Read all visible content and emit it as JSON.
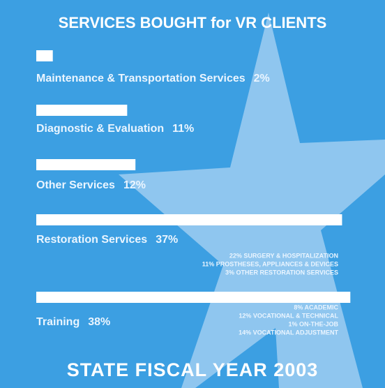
{
  "chart_data": {
    "type": "bar",
    "title": "SERVICES BOUGHT for VR CLIENTS",
    "footer": "STATE FISCAL YEAR 2003",
    "categories": [
      "Maintenance & Transportation Services",
      "Diagnostic & Evaluation",
      "Other Services",
      "Restoration Services",
      "Training"
    ],
    "values": [
      2,
      11,
      12,
      37,
      38
    ],
    "value_labels": [
      "2%",
      "11%",
      "12%",
      "37%",
      "38%"
    ],
    "color": "#ffffff",
    "annotations": [
      [
        "22% SURGERY & HOSPITALIZATION",
        "11% PROSTHESES, APPLIANCES & DEVICES",
        "3% OTHER RESTORATION SERVICES"
      ],
      [
        "8% ACADEMIC",
        "12% VOCATIONAL & TECHNICAL",
        "1% ON-THE-JOB",
        "14% VOCATIONAL ADJUSTMENT"
      ]
    ]
  }
}
